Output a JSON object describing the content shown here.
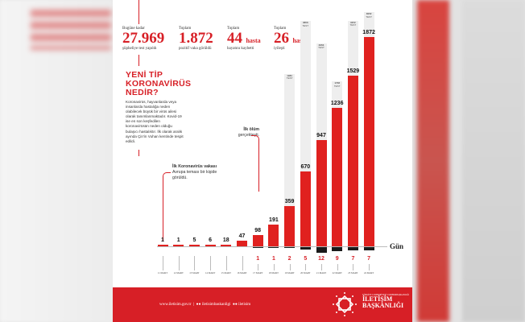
{
  "stats": [
    {
      "label": "Bugüne kadar",
      "value": "27.969",
      "unit": "",
      "sub": "şüpheliye test yapıldı"
    },
    {
      "label": "Toplam",
      "value": "1.872",
      "unit": "",
      "sub": "pozitif vaka görüldü"
    },
    {
      "label": "Toplam",
      "value": "44",
      "unit": "hasta",
      "sub": "hayatını kaybetti"
    },
    {
      "label": "Toplam",
      "value": "26",
      "unit": "hasta",
      "sub": "iyileşti"
    }
  ],
  "intro": {
    "title_lines": [
      "YENİ TİP",
      "KORONAVİRÜS",
      "NEDİR?"
    ],
    "paragraph": "Koronavirüs, hayvanlarda veya insanlarda hastalığa neden olabilecek büyük bir virüs ailesi olarak tanımlanmaktadır. Kovid-19 ise en son keşfedilen koronavirüsün neden olduğu bulaşıcı hastalıktır. İlk olarak aralık ayında Çin'in Vuhan kentinde tespit edildi."
  },
  "annotations": {
    "first_case_bold": "İlk Koronavirüs vakası",
    "first_case_text": "Avrupa teması bir kişide görüldü.",
    "first_death_bold": "İlk ölüm",
    "first_death_text": "gerçekleşti."
  },
  "chart_data": {
    "type": "bar",
    "xlabel": "Gün",
    "categories": [
      "11 MART",
      "12 MART",
      "13 MART",
      "14 MART",
      "15 MART",
      "16 MART",
      "17 MART",
      "18 MART",
      "19 MART",
      "20 MART",
      "21 MART",
      "22 MART",
      "23 MART",
      "24 MART"
    ],
    "series": [
      {
        "name": "cases",
        "values": [
          1,
          1,
          5,
          6,
          18,
          47,
          98,
          191,
          359,
          670,
          947,
          1236,
          1529,
          1872
        ],
        "color": "#e0211f"
      },
      {
        "name": "TEST",
        "values": [
          null,
          null,
          null,
          null,
          null,
          null,
          null,
          null,
          1981,
          3656,
          2953,
          1738,
          3672,
          3952
        ],
        "color": "#eeeeee"
      },
      {
        "name": "deaths",
        "values": [
          null,
          null,
          null,
          null,
          null,
          null,
          1,
          1,
          2,
          5,
          12,
          9,
          7,
          7
        ],
        "color": "#1a1a1a"
      }
    ],
    "test_unit": "TEST"
  },
  "footer": {
    "website": "www.iletisim.gov.tr",
    "social1": "iletisimbaskanligi",
    "social2": "iletisim",
    "logo_top": "TÜRKİYE CUMHURİYETİ CUMHURBAŞKANLIĞI",
    "logo_line1": "İLETİŞİM",
    "logo_line2": "BAŞKANLIĞI"
  },
  "colors": {
    "accent": "#d71f26"
  }
}
